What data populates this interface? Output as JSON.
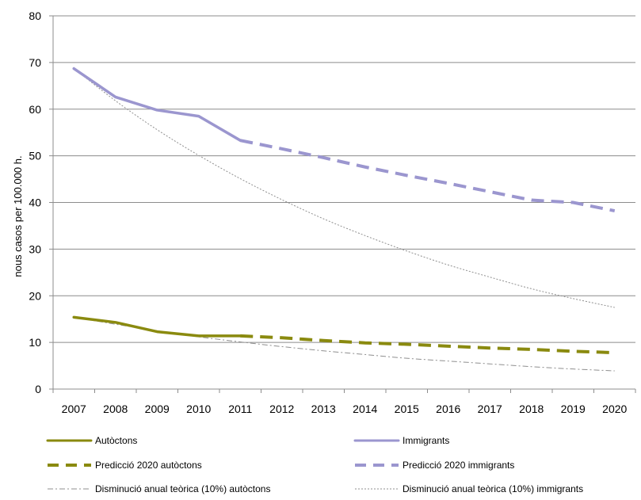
{
  "chart_data": {
    "type": "line",
    "title": "",
    "xlabel": "",
    "ylabel": "nous casos per 100.000 h.",
    "ylim": [
      0,
      80
    ],
    "yticks": [
      "0",
      "10",
      "20",
      "30",
      "40",
      "50",
      "60",
      "70",
      "80"
    ],
    "categories": [
      "2007",
      "2008",
      "2009",
      "2010",
      "2011",
      "2012",
      "2013",
      "2014",
      "2015",
      "2016",
      "2017",
      "2018",
      "2019",
      "2020"
    ],
    "grid": true,
    "legend_position": "bottom",
    "series": [
      {
        "name": "Autòctons",
        "color": "#8a8a0f",
        "style": "solid",
        "x": [
          "2007",
          "2008",
          "2009",
          "2010",
          "2011"
        ],
        "values": [
          15.4,
          14.3,
          12.3,
          11.4,
          11.4
        ]
      },
      {
        "name": "Immigrants",
        "color": "#9b96cf",
        "style": "solid",
        "x": [
          "2007",
          "2008",
          "2009",
          "2010",
          "2011"
        ],
        "values": [
          68.7,
          62.6,
          59.8,
          58.5,
          53.3
        ]
      },
      {
        "name": "Predicció 2020 autòctons",
        "color": "#8a8a0f",
        "style": "dashed",
        "x": [
          "2011",
          "2012",
          "2013",
          "2014",
          "2015",
          "2016",
          "2017",
          "2018",
          "2019",
          "2020"
        ],
        "values": [
          11.4,
          11.0,
          10.4,
          9.9,
          9.6,
          9.2,
          8.8,
          8.5,
          8.1,
          7.8
        ]
      },
      {
        "name": "Predicció 2020 immigrants",
        "color": "#9b96cf",
        "style": "dashed",
        "x": [
          "2011",
          "2012",
          "2013",
          "2014",
          "2015",
          "2016",
          "2017",
          "2018",
          "2019",
          "2020"
        ],
        "values": [
          53.3,
          51.5,
          49.6,
          47.6,
          45.8,
          44.1,
          42.3,
          40.5,
          40.0,
          38.2
        ]
      },
      {
        "name": "Disminució anual teòrica (10%) autòctons",
        "color": "#8f8f8f",
        "style": "dashdot",
        "x": [
          "2007",
          "2008",
          "2009",
          "2010",
          "2011",
          "2012",
          "2013",
          "2014",
          "2015",
          "2016",
          "2017",
          "2018",
          "2019",
          "2020"
        ],
        "values": [
          15.4,
          13.9,
          12.5,
          11.2,
          10.1,
          9.1,
          8.2,
          7.4,
          6.6,
          6.0,
          5.4,
          4.8,
          4.3,
          3.9
        ]
      },
      {
        "name": "Disminució anual teòrica (10%) immigrants",
        "color": "#8f8f8f",
        "style": "dotted",
        "x": [
          "2007",
          "2008",
          "2009",
          "2010",
          "2011",
          "2012",
          "2013",
          "2014",
          "2015",
          "2016",
          "2017",
          "2018",
          "2019",
          "2020"
        ],
        "values": [
          68.7,
          61.8,
          55.6,
          50.1,
          45.1,
          40.6,
          36.5,
          32.9,
          29.6,
          26.6,
          24.0,
          21.5,
          19.4,
          17.5
        ]
      }
    ],
    "legend": [
      {
        "label": "Autòctons",
        "color": "#8a8a0f",
        "style": "solid"
      },
      {
        "label": "Immigrants",
        "color": "#9b96cf",
        "style": "solid"
      },
      {
        "label": "Predicció 2020 autòctons",
        "color": "#8a8a0f",
        "style": "dashed"
      },
      {
        "label": "Predicció 2020 immigrants",
        "color": "#9b96cf",
        "style": "dashed"
      },
      {
        "label": "Disminució anual teòrica (10%) autòctons",
        "color": "#8f8f8f",
        "style": "dashdot"
      },
      {
        "label": "Disminució anual teòrica (10%) immigrants",
        "color": "#8f8f8f",
        "style": "dotted"
      }
    ]
  }
}
